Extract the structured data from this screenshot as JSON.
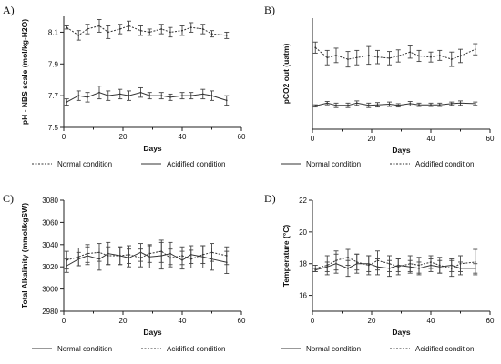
{
  "chart_data": [
    {
      "panel": "A)",
      "type": "line",
      "ylabel": "pH - NBS scale (mol/kg-H2O)",
      "xlabel": "Days",
      "xlim": [
        0,
        60
      ],
      "ylim": [
        7.5,
        8.2
      ],
      "xticks": [
        "0",
        "20",
        "40",
        "60"
      ],
      "yticks": [
        7.5,
        7.7,
        7.9,
        8.1
      ],
      "ytick_labels": [
        "7.5",
        "7.7",
        "7.9",
        "8.1"
      ],
      "x": [
        1,
        5,
        8,
        12,
        15,
        19,
        22,
        26,
        29,
        33,
        36,
        40,
        43,
        47,
        50,
        55
      ],
      "series": [
        {
          "name": "Normal condition",
          "style": "dotted",
          "values": [
            8.13,
            8.08,
            8.12,
            8.14,
            8.1,
            8.12,
            8.14,
            8.11,
            8.1,
            8.12,
            8.1,
            8.11,
            8.13,
            8.12,
            8.09,
            8.08
          ],
          "errors": [
            0.01,
            0.03,
            0.03,
            0.04,
            0.04,
            0.03,
            0.03,
            0.03,
            0.02,
            0.03,
            0.03,
            0.03,
            0.03,
            0.03,
            0.02,
            0.02
          ]
        },
        {
          "name": "Acidified condition",
          "style": "solid",
          "values": [
            7.66,
            7.7,
            7.69,
            7.72,
            7.7,
            7.71,
            7.7,
            7.72,
            7.7,
            7.7,
            7.69,
            7.7,
            7.7,
            7.71,
            7.7,
            7.67
          ],
          "errors": [
            0.02,
            0.03,
            0.03,
            0.04,
            0.03,
            0.03,
            0.03,
            0.03,
            0.02,
            0.02,
            0.02,
            0.02,
            0.02,
            0.03,
            0.03,
            0.03
          ]
        }
      ]
    },
    {
      "panel": "B)",
      "type": "line",
      "ylabel": "pCO2 out (uatm)",
      "xlabel": "Days",
      "xlim": [
        0,
        60
      ],
      "ylim": [
        0,
        2000
      ],
      "xticks": [
        "0",
        "20",
        "40",
        "60"
      ],
      "yticks": [],
      "ytick_labels": [],
      "x": [
        1,
        5,
        8,
        12,
        15,
        19,
        22,
        26,
        29,
        33,
        36,
        40,
        43,
        47,
        50,
        55
      ],
      "series": [
        {
          "name": "Normal condition",
          "style": "solid",
          "values": [
            420,
            470,
            430,
            430,
            470,
            430,
            440,
            450,
            430,
            460,
            440,
            440,
            440,
            460,
            470,
            460
          ],
          "errors": [
            20,
            30,
            40,
            40,
            40,
            40,
            40,
            40,
            30,
            40,
            30,
            30,
            30,
            30,
            40,
            30
          ]
        },
        {
          "name": "Acidified condition",
          "style": "dotted",
          "values": [
            1470,
            1290,
            1330,
            1260,
            1290,
            1330,
            1300,
            1280,
            1320,
            1390,
            1320,
            1300,
            1330,
            1260,
            1320,
            1440
          ],
          "errors": [
            100,
            130,
            130,
            140,
            130,
            160,
            120,
            120,
            110,
            110,
            100,
            90,
            90,
            130,
            120,
            100
          ]
        }
      ]
    },
    {
      "panel": "C)",
      "type": "line",
      "ylabel": "Total Alkalinity (mmol/kgSW)",
      "xlabel": "Days",
      "xlim": [
        0,
        60
      ],
      "ylim": [
        2980,
        3080
      ],
      "xticks": [
        "0",
        "20",
        "40",
        "60"
      ],
      "yticks": [
        2980,
        3000,
        3020,
        3040,
        3060,
        3080
      ],
      "ytick_labels": [
        "2980",
        "3000",
        "3020",
        "3040",
        "3060",
        "3080"
      ],
      "x": [
        1,
        5,
        8,
        12,
        15,
        19,
        22,
        26,
        29,
        33,
        36,
        40,
        43,
        47,
        50,
        55
      ],
      "series": [
        {
          "name": "Normal condition",
          "style": "solid",
          "values": [
            3021,
            3027,
            3030,
            3027,
            3032,
            3030,
            3028,
            3033,
            3029,
            3030,
            3032,
            3026,
            3031,
            3029,
            3027,
            3024
          ],
          "errors": [
            6,
            6,
            8,
            10,
            10,
            8,
            8,
            8,
            10,
            12,
            10,
            8,
            8,
            10,
            10,
            10
          ]
        },
        {
          "name": "Acidified condition",
          "style": "dotted",
          "values": [
            3026,
            3029,
            3032,
            3033,
            3030,
            3030,
            3031,
            3028,
            3032,
            3034,
            3028,
            3030,
            3027,
            3031,
            3033,
            3030
          ],
          "errors": [
            8,
            8,
            8,
            8,
            8,
            8,
            8,
            8,
            8,
            10,
            8,
            8,
            8,
            8,
            8,
            8
          ]
        }
      ]
    },
    {
      "panel": "D)",
      "type": "line",
      "ylabel": "Temperature (°C)",
      "xlabel": "Days",
      "xlim": [
        0,
        60
      ],
      "ylim": [
        15,
        22
      ],
      "xticks": [
        "0",
        "20",
        "40",
        "60"
      ],
      "yticks": [
        16,
        18,
        20,
        22
      ],
      "ytick_labels": [
        "16",
        "18",
        "20",
        "22"
      ],
      "x": [
        1,
        5,
        8,
        12,
        15,
        19,
        22,
        26,
        29,
        33,
        36,
        40,
        43,
        47,
        50,
        55
      ],
      "series": [
        {
          "name": "Normal condition",
          "style": "solid",
          "values": [
            17.6,
            17.8,
            18.0,
            17.7,
            18.0,
            18.0,
            17.8,
            17.7,
            17.9,
            17.8,
            17.7,
            17.9,
            17.8,
            17.9,
            17.7,
            17.7
          ],
          "errors": [
            0.1,
            0.3,
            0.6,
            0.5,
            0.6,
            0.5,
            0.5,
            0.5,
            0.4,
            0.4,
            0.4,
            0.4,
            0.4,
            0.4,
            0.4,
            0.3
          ]
        },
        {
          "name": "Acidified condition",
          "style": "dotted",
          "values": [
            17.7,
            17.9,
            18.2,
            18.4,
            18.1,
            17.9,
            18.2,
            18.0,
            17.8,
            18.0,
            17.9,
            18.1,
            17.9,
            17.7,
            18.0,
            18.1
          ],
          "errors": [
            0.2,
            0.6,
            0.6,
            0.5,
            0.5,
            0.6,
            0.6,
            0.5,
            0.5,
            0.5,
            0.5,
            0.4,
            0.5,
            0.5,
            0.5,
            0.8
          ]
        }
      ]
    }
  ]
}
